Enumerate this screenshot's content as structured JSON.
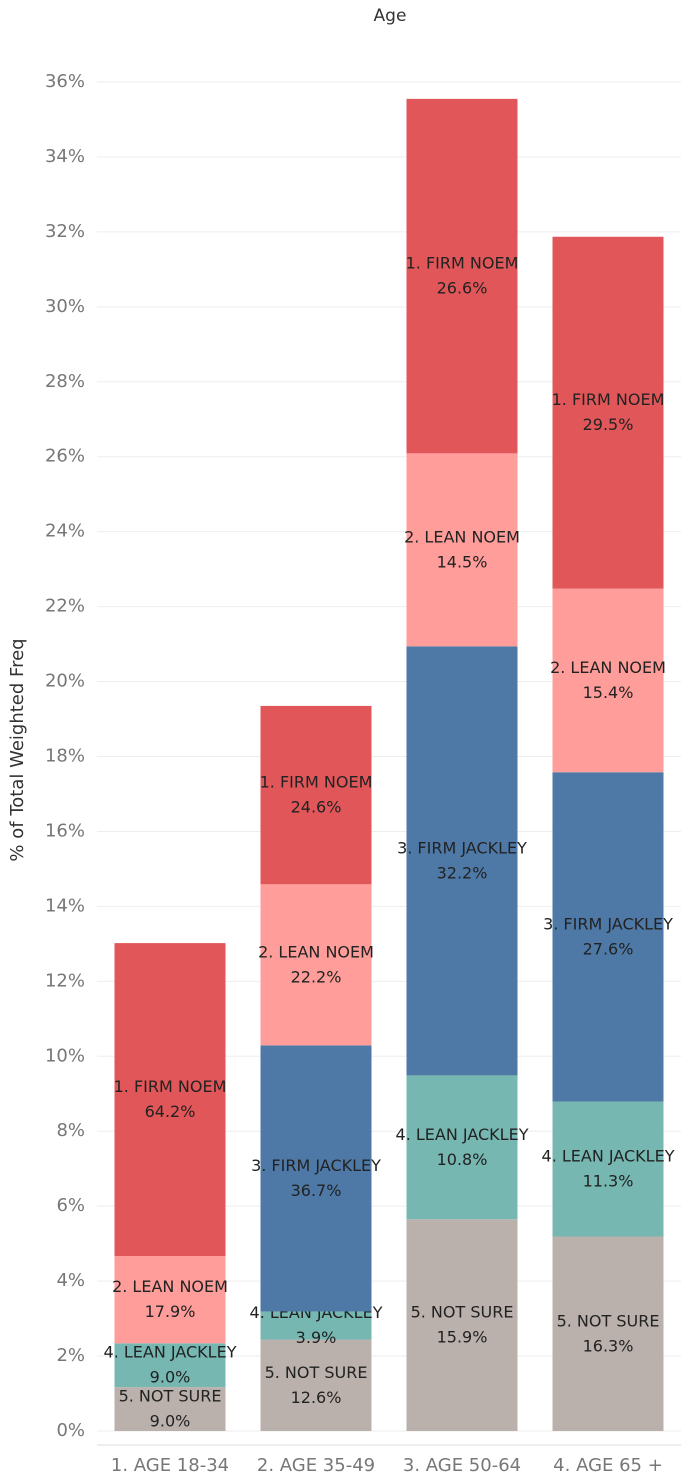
{
  "chart_data": {
    "type": "stacked_bar",
    "title": "Age",
    "y_label": "% of Total Weighted Freq",
    "categories": [
      "1. AGE 18-34",
      "2. AGE 35-49",
      "3. AGE 50-64",
      "4. AGE 65 +"
    ],
    "series": [
      {
        "name": "5. NOT SURE",
        "color": "#bab0ac",
        "values": [
          1.17,
          2.44,
          5.65,
          5.19
        ],
        "labels": [
          "9.0%",
          "12.6%",
          "15.9%",
          "16.3%"
        ]
      },
      {
        "name": "4. LEAN JACKLEY",
        "color": "#76b7b2",
        "values": [
          1.17,
          0.75,
          3.84,
          3.6
        ],
        "labels": [
          "9.0%",
          "3.9%",
          "10.8%",
          "11.3%"
        ]
      },
      {
        "name": "3. FIRM JACKLEY",
        "color": "#4e79a7",
        "values": [
          null,
          7.1,
          11.45,
          8.79
        ],
        "labels": [
          null,
          "36.7%",
          "32.2%",
          "27.6%"
        ]
      },
      {
        "name": "2. LEAN NOEM",
        "color": "#ff9d9a",
        "values": [
          2.33,
          4.3,
          5.15,
          4.9
        ],
        "labels": [
          "17.9%",
          "22.2%",
          "14.5%",
          "15.4%"
        ]
      },
      {
        "name": "1. FIRM NOEM",
        "color": "#e15759",
        "values": [
          8.35,
          4.76,
          9.46,
          9.39
        ],
        "labels": [
          "64.2%",
          "24.6%",
          "26.6%",
          "29.5%"
        ]
      }
    ],
    "ylim": [
      0,
      36
    ],
    "yticks": [
      {
        "value": 0,
        "label": "0%"
      },
      {
        "value": 2,
        "label": "2%"
      },
      {
        "value": 4,
        "label": "4%"
      },
      {
        "value": 6,
        "label": "6%"
      },
      {
        "value": 8,
        "label": "8%"
      },
      {
        "value": 10,
        "label": "10%"
      },
      {
        "value": 12,
        "label": "12%"
      },
      {
        "value": 14,
        "label": "14%"
      },
      {
        "value": 16,
        "label": "16%"
      },
      {
        "value": 18,
        "label": "18%"
      },
      {
        "value": 20,
        "label": "20%"
      },
      {
        "value": 22,
        "label": "22%"
      },
      {
        "value": 24,
        "label": "24%"
      },
      {
        "value": 26,
        "label": "26%"
      },
      {
        "value": 28,
        "label": "28%"
      },
      {
        "value": 30,
        "label": "30%"
      },
      {
        "value": 32,
        "label": "32%"
      },
      {
        "value": 34,
        "label": "34%"
      },
      {
        "value": 36,
        "label": "36%"
      }
    ],
    "grid": true
  }
}
